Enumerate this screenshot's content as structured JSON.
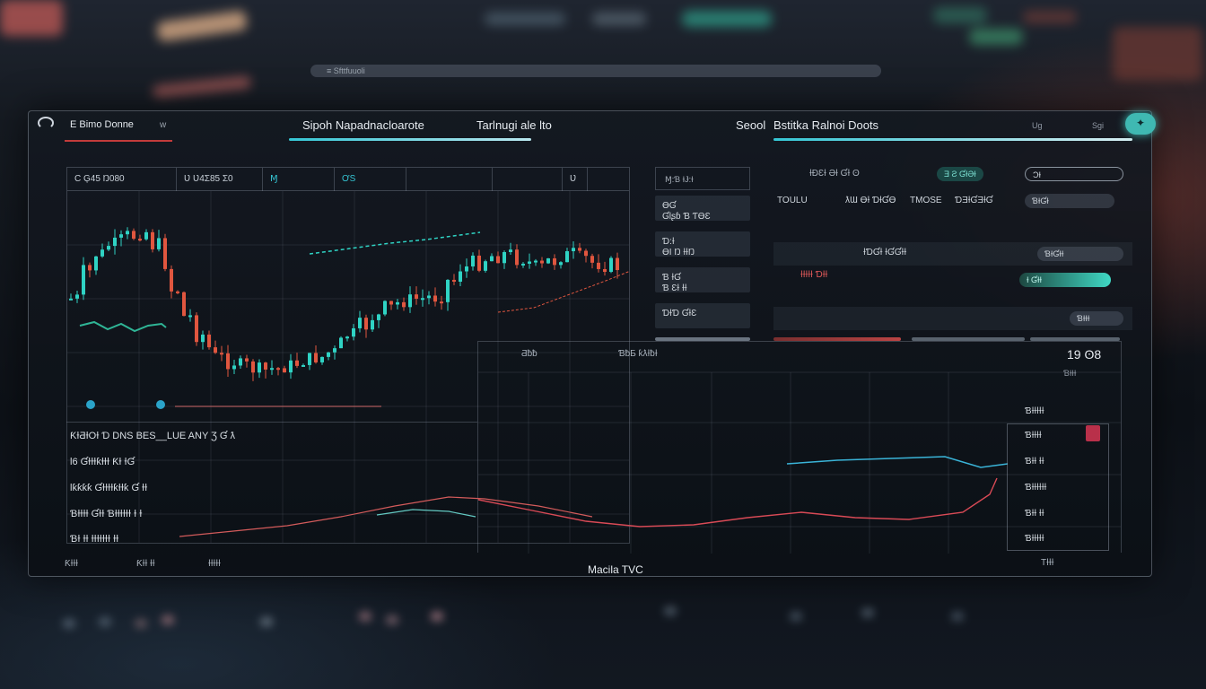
{
  "browser": {
    "address": "≡ Sfttfuuoli"
  },
  "header": {
    "brand": "E Bimo Donne",
    "brand_suffix": "w",
    "tabs": [
      {
        "label": "Sipoh Napadnacloarote",
        "active": true
      },
      {
        "label": "Tarlnugi ale lto",
        "active": false
      }
    ],
    "right_title": "Seool",
    "right_subtitle": "Bstitka Ralnoi Doots",
    "right_labels": [
      "Ug",
      "Sgi"
    ],
    "colors": {
      "accent": "#35c6d4",
      "up": "#2fd3c4",
      "down": "#e0563f",
      "alert": "#c83a3a"
    }
  },
  "chart": {
    "toolbar": [
      "C   Ģ45 Ŋ080",
      "Ʋ Ʋ4Ʃ85 Ʃ0",
      "Ɱ",
      "ƠS",
      "",
      "",
      "Ʋ",
      ""
    ],
    "footer_left": "",
    "lows": [
      "□",
      "□"
    ]
  },
  "order_book": {
    "header": "Ɱ:Ɓ ƗɈ:Ɨ",
    "rows": [
      {
        "line1": "ƟƓ",
        "line2": "Ɠlʂɓ Ɓ ƬƟƐ"
      },
      {
        "line1": "Ɗ:Ɨ",
        "line2": "ƟI Ŋ ƗƗŊ"
      },
      {
        "line1": "Ɓ ƗƓ",
        "line2": "Ɓ ƐƗ ƗƗ"
      },
      {
        "line1": "",
        "line2": "ƊƗƊ ƓƗƐ"
      }
    ]
  },
  "trades": {
    "top_label": "ƗƉƐƗ ƏƗ ƓƗ ʘ",
    "top_pill": "Ǝ Ƨ ƓƗƏƗ",
    "top_pill_right": "ƆƗ",
    "cols": [
      "TOULU",
      "ƛƜ   ƟƗ ƊƗƓƟ",
      "TMOSE",
      "ƊƎƗƓƎƗƓ"
    ],
    "col_right": "ƁƗƓƗ",
    "row2_label": "ƗƊƓƗ ƗƓƓƗƗ",
    "row2_right": "ƁƗƓƗƗ",
    "row3_label": "ƗƗƗƗƗ ƊƗƗ",
    "pill_green": "Ɨ ƓƗƗ",
    "row4_right": "ƁƗƗƗ"
  },
  "lower_chart": {
    "title_left": "Ƌƀƀ",
    "title_mid": "ƁƀƂ ƙƛƗƀƗ",
    "value": "19 ʘ8",
    "sub": "ƁƗƗƗ"
  },
  "list": {
    "items": [
      "ƘƗƋƗOƗ Ɗ DNS BES__LUE ANY  Ʒ  Ɠ  ƛ",
      "Ɩ6 ƓƗƗƗƙƗƗƗ ƘƗ ƗƓ",
      "Ɩƙƙƙƙ  ƓƗƗƗƗƙƗƗƙ  Ɠ  ƗƗ",
      "ƁƗƗƗƗ ƓƗƗ  ƁƗƗƗƗƗƗ  Ɨ  Ɨ",
      "ƁƗ  ƗƗ ƗƗƗƗƗƗƗ ƗƗ"
    ]
  },
  "prices": [
    "ƁƗƗƗƗƗ",
    "ƁƗƗƗƗ",
    "ƁƗƗ ƗƗ",
    "ƁƗƗƗƗƗƗ",
    "ƁƗƗ ƗƗ",
    "ƁƗƗƗƗƗ"
  ],
  "footer": {
    "left": [
      "ƘƗƗƗ",
      "ƘƗƗ ƗƗ",
      "ƗƗƗƗƗ"
    ],
    "center": "Macila TVC",
    "right": "TƗƗƗ"
  }
}
